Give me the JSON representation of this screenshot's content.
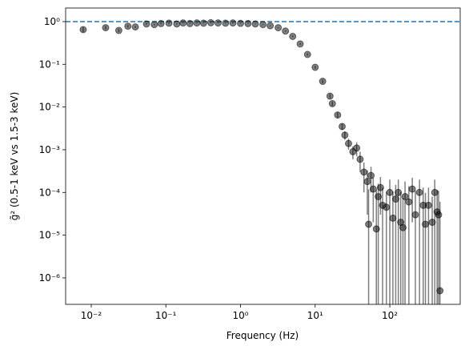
{
  "chart_data": {
    "type": "errorbar-scatter",
    "xlabel": "Frequency (Hz)",
    "ylabel": "g̃² (0.5-1 keV vs 1.5-3 keV)",
    "xlog": true,
    "ylog": true,
    "xlim": [
      0.00454,
      877
    ],
    "ylim": [
      2.4e-07,
      2.08
    ],
    "xticks": [
      {
        "value": 0.01,
        "label": "10⁻²"
      },
      {
        "value": 0.1,
        "label": "10⁻¹"
      },
      {
        "value": 1,
        "label": "10⁰"
      },
      {
        "value": 10,
        "label": "10¹"
      },
      {
        "value": 100,
        "label": "10²"
      }
    ],
    "yticks": [
      {
        "value": 1e-06,
        "label": "10⁻⁶"
      },
      {
        "value": 1e-05,
        "label": "10⁻⁵"
      },
      {
        "value": 0.0001,
        "label": "10⁻⁴"
      },
      {
        "value": 0.001,
        "label": "10⁻³"
      },
      {
        "value": 0.01,
        "label": "10⁻²"
      },
      {
        "value": 0.1,
        "label": "10⁻¹"
      },
      {
        "value": 1,
        "label": "10⁰"
      }
    ],
    "hline": {
      "y": 1,
      "color": "#1f77b4"
    },
    "color": "#000000",
    "x": [
      0.0078,
      0.0156,
      0.0234,
      0.031,
      0.039,
      0.055,
      0.07,
      0.086,
      0.11,
      0.14,
      0.17,
      0.21,
      0.26,
      0.32,
      0.4,
      0.5,
      0.63,
      0.79,
      1.0,
      1.26,
      1.58,
      2.0,
      2.5,
      3.2,
      4.0,
      5.0,
      6.3,
      7.9,
      10,
      12.6,
      15.8,
      17,
      20,
      23,
      25,
      28,
      32,
      36,
      40,
      45,
      50,
      52,
      56,
      60,
      66,
      70,
      75,
      80,
      90,
      100,
      110,
      120,
      130,
      140,
      150,
      160,
      180,
      200,
      220,
      250,
      280,
      300,
      330,
      370,
      400,
      430,
      450,
      470
    ],
    "values": [
      0.65,
      0.72,
      0.62,
      0.78,
      0.75,
      0.88,
      0.85,
      0.9,
      0.92,
      0.88,
      0.93,
      0.9,
      0.93,
      0.92,
      0.94,
      0.93,
      0.92,
      0.93,
      0.91,
      0.9,
      0.88,
      0.85,
      0.8,
      0.72,
      0.6,
      0.45,
      0.3,
      0.17,
      0.085,
      0.04,
      0.018,
      0.012,
      0.0065,
      0.0035,
      0.0022,
      0.0014,
      0.0009,
      0.0011,
      0.0006,
      0.0003,
      0.00018,
      1.8e-05,
      0.00025,
      0.00012,
      1.4e-05,
      8e-05,
      0.00013,
      5e-05,
      4.5e-05,
      0.0001,
      2.5e-05,
      7e-05,
      0.0001,
      2e-05,
      1.5e-05,
      8e-05,
      6e-05,
      0.00012,
      3e-05,
      0.0001,
      5e-05,
      1.8e-05,
      5e-05,
      2e-05,
      0.0001,
      3.5e-05,
      3e-05,
      5e-07
    ],
    "errors": [
      0.08,
      0.06,
      0.05,
      0.05,
      0.04,
      0.04,
      0.03,
      0.03,
      0.03,
      0.03,
      0.02,
      0.02,
      0.02,
      0.02,
      0.02,
      0.02,
      0.02,
      0.02,
      0.02,
      0.02,
      0.02,
      0.02,
      0.02,
      0.02,
      0.02,
      0.02,
      0.015,
      0.01,
      0.006,
      0.004,
      0.002,
      0.0015,
      0.001,
      0.0006,
      0.0005,
      0.0004,
      0.0003,
      0.0004,
      0.0003,
      0.0002,
      0.00015,
      0.0001,
      0.00015,
      0.0001,
      0.0001,
      8e-05,
      0.0001,
      8e-05,
      6e-05,
      0.0001,
      8e-05,
      8e-05,
      0.0001,
      8e-05,
      6e-05,
      0.0001,
      8e-05,
      0.0001,
      8e-05,
      0.0001,
      8e-05,
      8e-05,
      8e-05,
      6e-05,
      0.0001,
      8e-05,
      8e-05,
      6e-05
    ]
  }
}
